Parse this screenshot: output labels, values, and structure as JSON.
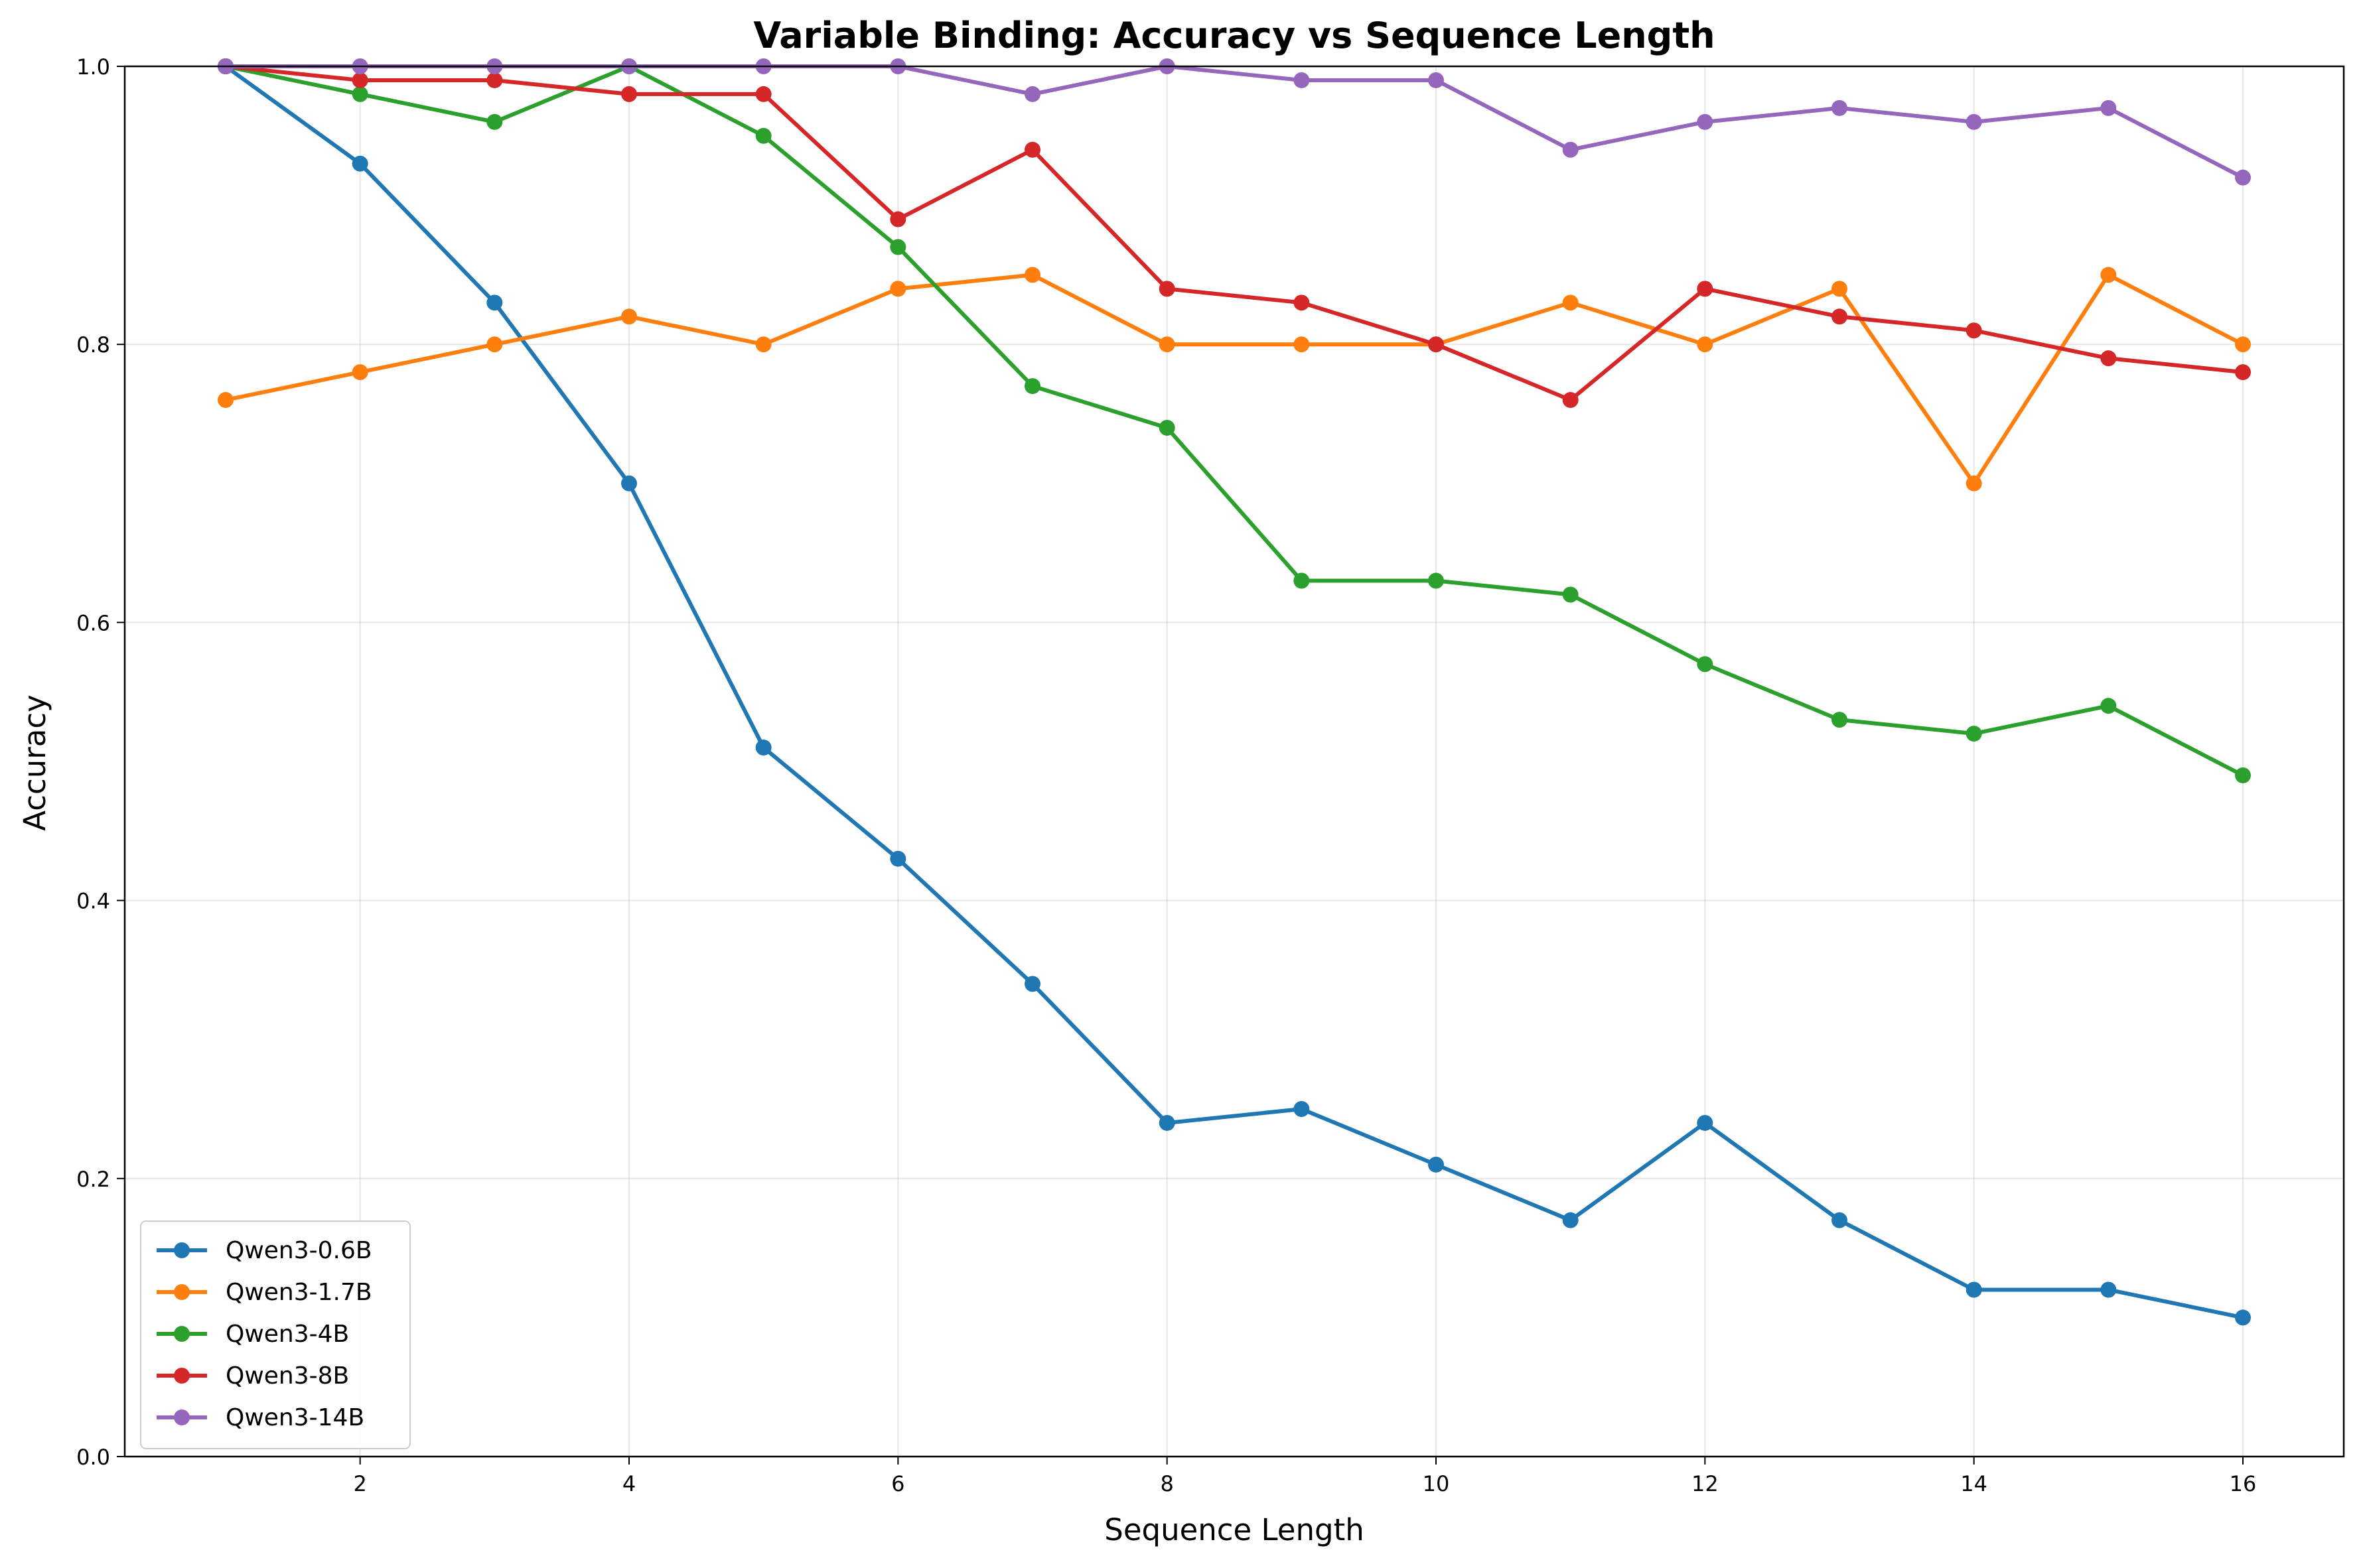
{
  "chart_data": {
    "type": "line",
    "title": "Variable Binding: Accuracy vs Sequence Length",
    "xlabel": "Sequence Length",
    "ylabel": "Accuracy",
    "xlim": [
      0.25,
      16.75
    ],
    "ylim": [
      0.0,
      1.0
    ],
    "xticks": [
      2,
      4,
      6,
      8,
      10,
      12,
      14,
      16
    ],
    "yticks": [
      0.0,
      0.2,
      0.4,
      0.6,
      0.8,
      1.0
    ],
    "xtick_labels": [
      "2",
      "4",
      "6",
      "8",
      "10",
      "12",
      "14",
      "16"
    ],
    "ytick_labels": [
      "0.0",
      "0.2",
      "0.4",
      "0.6",
      "0.8",
      "1.0"
    ],
    "grid": true,
    "legend_position": "lower-left",
    "x": [
      1,
      2,
      3,
      4,
      5,
      6,
      7,
      8,
      9,
      10,
      11,
      12,
      13,
      14,
      15,
      16
    ],
    "series": [
      {
        "name": "Qwen3-0.6B",
        "color": "#1f77b4",
        "values": [
          1.0,
          0.93,
          0.83,
          0.7,
          0.51,
          0.43,
          0.34,
          0.24,
          0.25,
          0.21,
          0.17,
          0.24,
          0.17,
          0.12,
          0.12,
          0.1
        ]
      },
      {
        "name": "Qwen3-1.7B",
        "color": "#ff7f0e",
        "values": [
          0.76,
          0.78,
          0.8,
          0.82,
          0.8,
          0.84,
          0.85,
          0.8,
          0.8,
          0.8,
          0.83,
          0.8,
          0.84,
          0.7,
          0.85,
          0.8
        ]
      },
      {
        "name": "Qwen3-4B",
        "color": "#2ca02c",
        "values": [
          1.0,
          0.98,
          0.96,
          1.0,
          0.95,
          0.87,
          0.77,
          0.74,
          0.63,
          0.63,
          0.62,
          0.57,
          0.53,
          0.52,
          0.54,
          0.49
        ]
      },
      {
        "name": "Qwen3-8B",
        "color": "#d62728",
        "values": [
          1.0,
          0.99,
          0.99,
          0.98,
          0.98,
          0.89,
          0.94,
          0.84,
          0.83,
          0.8,
          0.76,
          0.84,
          0.82,
          0.81,
          0.79,
          0.78
        ]
      },
      {
        "name": "Qwen3-14B",
        "color": "#9467bd",
        "values": [
          1.0,
          1.0,
          1.0,
          1.0,
          1.0,
          1.0,
          0.98,
          1.0,
          0.99,
          0.99,
          0.94,
          0.96,
          0.97,
          0.96,
          0.97,
          0.92
        ]
      }
    ]
  }
}
